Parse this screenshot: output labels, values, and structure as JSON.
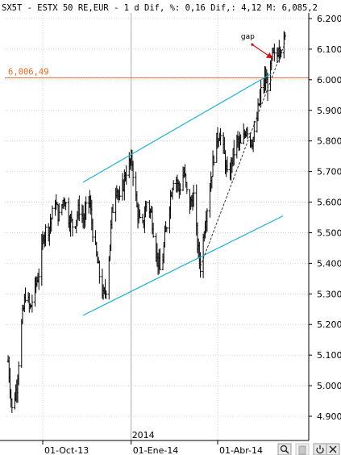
{
  "header": {
    "text": "SX5T - ESTX 50 RE,EUR -  1 d Dif, %: 0,16 Dif,: 4,12 M: 6,085,2"
  },
  "colors": {
    "background": "#ffffff",
    "grid": "#c8c8c8",
    "bars": "#000000",
    "channel": "#1fb0d0",
    "trendline": "#333333",
    "reference": "#e46a2a",
    "annotation": "#d01010"
  },
  "footer_icons": [
    "search-icon",
    "page-icon",
    "power-icon"
  ],
  "chart_data": {
    "type": "ohlc",
    "title": "SX5T - ESTX 50 RE,EUR",
    "subtitle": "1 d Dif, %: 0,16 Dif,: 4,12 M: 6,085,2",
    "xlabel": "",
    "ylabel": "",
    "ylim": [
      4.88,
      6.22
    ],
    "y_ticks": [
      {
        "value": 4.9,
        "label": "4.900"
      },
      {
        "value": 5.0,
        "label": "5.000"
      },
      {
        "value": 5.1,
        "label": "5.100"
      },
      {
        "value": 5.2,
        "label": "5.200"
      },
      {
        "value": 5.3,
        "label": "5.300"
      },
      {
        "value": 5.4,
        "label": "5.400"
      },
      {
        "value": 5.5,
        "label": "5.500"
      },
      {
        "value": 5.6,
        "label": "5.600"
      },
      {
        "value": 5.7,
        "label": "5.700"
      },
      {
        "value": 5.8,
        "label": "5.800"
      },
      {
        "value": 5.9,
        "label": "5.900"
      },
      {
        "value": 6.0,
        "label": "6.000"
      },
      {
        "value": 6.1,
        "label": "6.100"
      },
      {
        "value": 6.2,
        "label": "6.200"
      }
    ],
    "x_range": [
      "2013-08-26",
      "2014-06-10"
    ],
    "x_ticks": [
      {
        "date": "2013-10-01",
        "label": "01-Oct-13"
      },
      {
        "date": "2014-01-01",
        "label": "01-Ene-14"
      },
      {
        "date": "2014-04-01",
        "label": "01-Abr-14"
      }
    ],
    "year_marker": {
      "date": "2014-01-01",
      "label": "2014"
    },
    "grid": true,
    "reference_line": {
      "value": 6.00649,
      "label": "6,006,49"
    },
    "channel_upper": [
      [
        "2013-11-12",
        5.665
      ],
      [
        "2014-05-27",
        6.02
      ]
    ],
    "channel_lower": [
      [
        "2013-11-12",
        5.23
      ],
      [
        "2014-06-08",
        5.555
      ]
    ],
    "trendline": [
      [
        "2014-03-14",
        5.39
      ],
      [
        "2014-06-10",
        6.12
      ]
    ],
    "annotation": {
      "text": "gap",
      "from": [
        "2014-05-07",
        6.115
      ],
      "to": [
        "2014-05-28",
        6.07
      ]
    },
    "series": [
      {
        "keypoints": [
          [
            "2013-08-26",
            5.08
          ],
          [
            "2013-08-30",
            4.92
          ],
          [
            "2013-09-04",
            5.0
          ],
          [
            "2013-09-09",
            5.2
          ],
          [
            "2013-09-13",
            5.3
          ],
          [
            "2013-09-18",
            5.25
          ],
          [
            "2013-09-23",
            5.32
          ],
          [
            "2013-09-28",
            5.38
          ],
          [
            "2013-10-02",
            5.5
          ],
          [
            "2013-10-08",
            5.52
          ],
          [
            "2013-10-14",
            5.6
          ],
          [
            "2013-10-18",
            5.55
          ],
          [
            "2013-10-23",
            5.62
          ],
          [
            "2013-10-28",
            5.55
          ],
          [
            "2013-11-02",
            5.52
          ],
          [
            "2013-11-08",
            5.58
          ],
          [
            "2013-11-13",
            5.54
          ],
          [
            "2013-11-18",
            5.62
          ],
          [
            "2013-11-23",
            5.48
          ],
          [
            "2013-11-28",
            5.38
          ],
          [
            "2013-12-03",
            5.29
          ],
          [
            "2013-12-07",
            5.33
          ],
          [
            "2013-12-12",
            5.56
          ],
          [
            "2013-12-17",
            5.66
          ],
          [
            "2013-12-20",
            5.6
          ],
          [
            "2013-12-24",
            5.66
          ],
          [
            "2013-12-28",
            5.72
          ],
          [
            "2014-01-02",
            5.73
          ],
          [
            "2014-01-07",
            5.58
          ],
          [
            "2014-01-12",
            5.5
          ],
          [
            "2014-01-17",
            5.6
          ],
          [
            "2014-01-22",
            5.56
          ],
          [
            "2014-01-27",
            5.44
          ],
          [
            "2014-02-01",
            5.36
          ],
          [
            "2014-02-05",
            5.48
          ],
          [
            "2014-02-10",
            5.6
          ],
          [
            "2014-02-15",
            5.7
          ],
          [
            "2014-02-20",
            5.64
          ],
          [
            "2014-02-25",
            5.7
          ],
          [
            "2014-03-02",
            5.58
          ],
          [
            "2014-03-07",
            5.62
          ],
          [
            "2014-03-11",
            5.46
          ],
          [
            "2014-03-14",
            5.39
          ],
          [
            "2014-03-19",
            5.54
          ],
          [
            "2014-03-24",
            5.65
          ],
          [
            "2014-03-29",
            5.78
          ],
          [
            "2014-04-03",
            5.83
          ],
          [
            "2014-04-08",
            5.75
          ],
          [
            "2014-04-12",
            5.66
          ],
          [
            "2014-04-16",
            5.74
          ],
          [
            "2014-04-21",
            5.8
          ],
          [
            "2014-04-26",
            5.78
          ],
          [
            "2014-05-01",
            5.85
          ],
          [
            "2014-05-06",
            5.8
          ],
          [
            "2014-05-10",
            5.82
          ],
          [
            "2014-05-13",
            5.9
          ],
          [
            "2014-05-16",
            5.96
          ],
          [
            "2014-05-20",
            6.0
          ],
          [
            "2014-05-24",
            5.98
          ],
          [
            "2014-05-28",
            6.08
          ],
          [
            "2014-06-01",
            6.06
          ],
          [
            "2014-06-04",
            6.12
          ],
          [
            "2014-06-07",
            6.1
          ],
          [
            "2014-06-10",
            6.13
          ]
        ]
      }
    ]
  }
}
